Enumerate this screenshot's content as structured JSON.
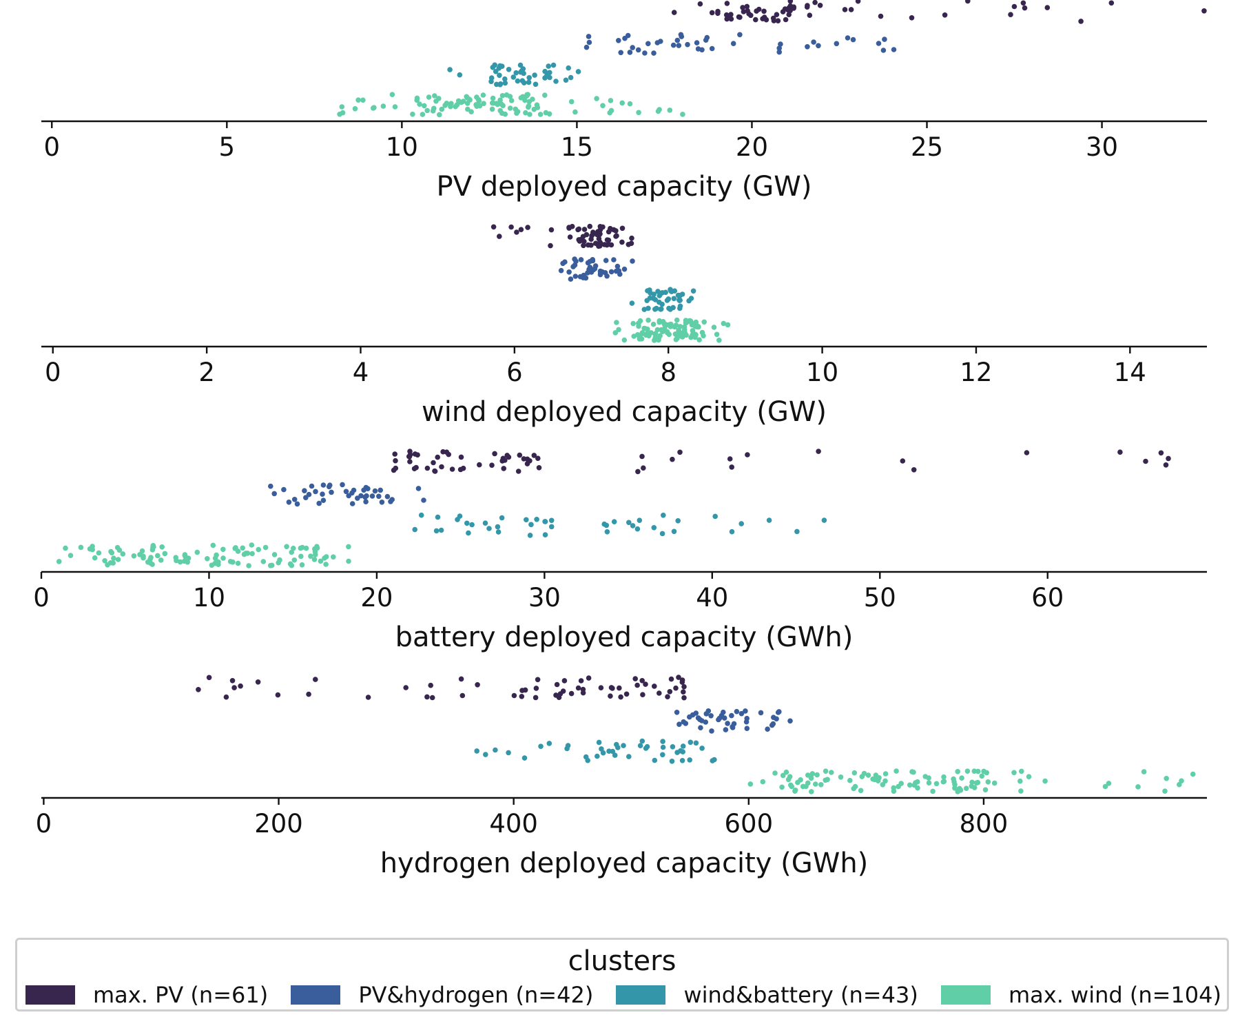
{
  "clusters": [
    {
      "key": "pv",
      "label": "max. PV (n=61)",
      "color": "#38264f",
      "n": 61
    },
    {
      "key": "pvh2",
      "label": "PV&hydrogen (n=42)",
      "color": "#3a5d9c",
      "n": 42
    },
    {
      "key": "wb",
      "label": "wind&battery (n=43)",
      "color": "#3497a9",
      "n": 43
    },
    {
      "key": "wind",
      "label": "max. wind (n=104)",
      "color": "#60cfa8",
      "n": 104
    }
  ],
  "legend": {
    "title": "clusters",
    "placement": "bottom-center"
  },
  "chart_data": [
    {
      "type": "scatter",
      "xlabel": "PV deployed capacity (GW)",
      "xlim": [
        -0.3,
        33
      ],
      "xticks": [
        "0",
        "5",
        "10",
        "15",
        "20",
        "25",
        "30"
      ],
      "tick_values": [
        0,
        5,
        10,
        15,
        20,
        25,
        30
      ],
      "series": [
        {
          "name": "max. PV (n=61)",
          "cluster": "pv",
          "x_range": [
            15.5,
            33
          ],
          "concentration": [
            19,
            22
          ]
        },
        {
          "name": "PV&hydrogen (n=42)",
          "cluster": "pvh2",
          "x_range": [
            15,
            26
          ],
          "concentration": [
            16,
            19
          ]
        },
        {
          "name": "wind&battery (n=43)",
          "cluster": "wb",
          "x_range": [
            11.3,
            15.6
          ],
          "concentration": [
            12.5,
            14.5
          ]
        },
        {
          "name": "max. wind (n=104)",
          "cluster": "wind",
          "x_range": [
            8.1,
            18.4
          ],
          "concentration": [
            10.5,
            14
          ]
        }
      ]
    },
    {
      "type": "scatter",
      "xlabel": "wind deployed capacity (GW)",
      "xlim": [
        -0.15,
        15
      ],
      "xticks": [
        "0",
        "2",
        "4",
        "6",
        "8",
        "10",
        "12",
        "14"
      ],
      "tick_values": [
        0,
        2,
        4,
        6,
        8,
        10,
        12,
        14
      ],
      "series": [
        {
          "name": "max. PV (n=61)",
          "cluster": "pv",
          "x_range": [
            5.7,
            7.6
          ],
          "concentration": [
            6.7,
            7.4
          ]
        },
        {
          "name": "PV&hydrogen (n=42)",
          "cluster": "pvh2",
          "x_range": [
            6.5,
            7.6
          ],
          "concentration": [
            6.6,
            7.4
          ]
        },
        {
          "name": "wind&battery (n=43)",
          "cluster": "wb",
          "x_range": [
            7.4,
            8.4
          ],
          "concentration": [
            7.7,
            8.2
          ]
        },
        {
          "name": "max. wind (n=104)",
          "cluster": "wind",
          "x_range": [
            7.3,
            8.8
          ],
          "concentration": [
            7.6,
            8.4
          ]
        }
      ]
    },
    {
      "type": "scatter",
      "xlabel": "battery deployed capacity (GWh)",
      "xlim": [
        0,
        69.5
      ],
      "xticks": [
        "0",
        "10",
        "20",
        "30",
        "40",
        "50",
        "60"
      ],
      "tick_values": [
        0,
        10,
        20,
        30,
        40,
        50,
        60
      ],
      "series": [
        {
          "name": "max. PV (n=61)",
          "cluster": "pv",
          "x_range": [
            20.5,
            69.5
          ],
          "concentration": [
            21,
            30
          ]
        },
        {
          "name": "PV&hydrogen (n=42)",
          "cluster": "pvh2",
          "x_range": [
            13.5,
            23
          ],
          "concentration": [
            15,
            21
          ]
        },
        {
          "name": "wind&battery (n=43)",
          "cluster": "wb",
          "x_range": [
            21.5,
            47
          ],
          "concentration": [
            22,
            38
          ]
        },
        {
          "name": "max. wind (n=104)",
          "cluster": "wind",
          "x_range": [
            0.8,
            18.6
          ],
          "concentration": [
            3,
            17
          ]
        }
      ]
    },
    {
      "type": "scatter",
      "xlabel": "hydrogen deployed capacity (GWh)",
      "xlim": [
        -2,
        990
      ],
      "xticks": [
        "0",
        "200",
        "400",
        "600",
        "800"
      ],
      "tick_values": [
        0,
        200,
        400,
        600,
        800
      ],
      "series": [
        {
          "name": "max. PV (n=61)",
          "cluster": "pv",
          "x_range": [
            113,
            550
          ],
          "concentration": [
            400,
            550
          ]
        },
        {
          "name": "PV&hydrogen (n=42)",
          "cluster": "pvh2",
          "x_range": [
            525,
            637
          ],
          "concentration": [
            535,
            600
          ]
        },
        {
          "name": "wind&battery (n=43)",
          "cluster": "wb",
          "x_range": [
            365,
            580
          ],
          "concentration": [
            420,
            560
          ]
        },
        {
          "name": "max. wind (n=104)",
          "cluster": "wind",
          "x_range": [
            600,
            990
          ],
          "concentration": [
            620,
            800
          ]
        }
      ]
    }
  ]
}
